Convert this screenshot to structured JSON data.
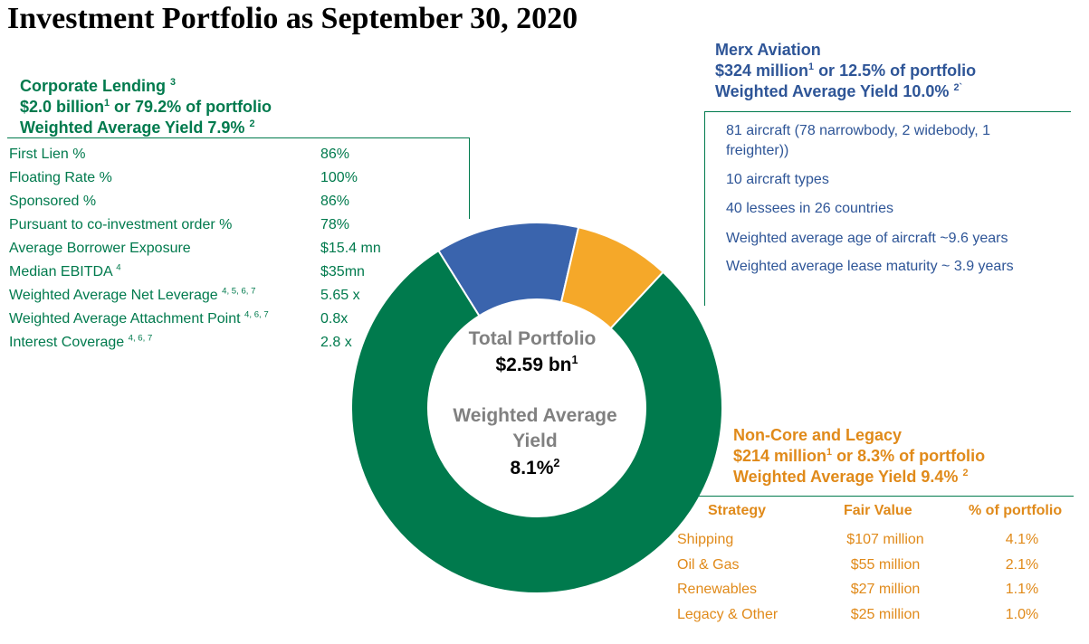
{
  "title": "Investment Portfolio as September 30, 2020",
  "center": {
    "label1": "Total Portfolio",
    "value1": "$2.59 bn",
    "sup1": "1",
    "label2a": "Weighted Average",
    "label2b": "Yield",
    "value2": "8.1%",
    "sup2": "2"
  },
  "corporate": {
    "h1": "Corporate Lending",
    "h1_sup": "3",
    "h2a": "$2.0 billion",
    "h2_sup": "1",
    "h2b": " or 79.2% of portfolio",
    "h3": "Weighted Average Yield 7.9% ",
    "h3_sup": "2",
    "rows": [
      {
        "label": "First Lien %",
        "sup": "",
        "value": "86%"
      },
      {
        "label": "Floating Rate %",
        "sup": "",
        "value": "100%"
      },
      {
        "label": "Sponsored %",
        "sup": "",
        "value": "86%"
      },
      {
        "label": "Pursuant to co-investment order %",
        "sup": "",
        "value": "78%"
      },
      {
        "label": "Average Borrower Exposure",
        "sup": "",
        "value": "$15.4 mn"
      },
      {
        "label": "Median EBITDA ",
        "sup": "4",
        "value": "$35mn"
      },
      {
        "label": "Weighted Average Net Leverage ",
        "sup": "4, 5, 6, 7",
        "value": "5.65 x"
      },
      {
        "label": "Weighted Average Attachment Point ",
        "sup": "4, 6, 7",
        "value": "0.8x"
      },
      {
        "label": "Interest Coverage ",
        "sup": "4, 6, 7",
        "value": "2.8 x"
      }
    ]
  },
  "merx": {
    "h1": "Merx Aviation",
    "h2a": "$324 million",
    "h2_sup": "1",
    "h2b": " or 12.5% of portfolio",
    "h3": "Weighted Average Yield 10.0% ",
    "h3_sup": "2`",
    "items": [
      "81 aircraft (78 narrowbody, 2 widebody, 1",
      "freighter))",
      "10 aircraft types",
      "40 lessees in 26 countries",
      "Weighted average age of aircraft  ~9.6 years",
      "Weighted average lease maturity ~ 3.9 years"
    ]
  },
  "noncore": {
    "h1": "Non-Core and Legacy",
    "h2a": "$214 million",
    "h2_sup": "1",
    "h2b": " or 8.3% of portfolio",
    "h3": "Weighted Average Yield 9.4% ",
    "h3_sup": "2",
    "columns": [
      "Strategy",
      "Fair Value",
      "% of portfolio"
    ],
    "rows": [
      [
        "Shipping",
        "$107 million",
        "4.1%"
      ],
      [
        "Oil & Gas",
        "$55 million",
        "2.1%"
      ],
      [
        "Renewables",
        "$27 million",
        "1.1%"
      ],
      [
        "Legacy & Other",
        "$25 million",
        "1.0%"
      ]
    ]
  },
  "colors": {
    "green": "#007a4d",
    "blue": "#3a64ad",
    "orange": "#f5a829",
    "center_gray": "#808080"
  },
  "chart_data": {
    "type": "pie",
    "donut": true,
    "categories": [
      "Corporate Lending",
      "Merx Aviation",
      "Non-Core and Legacy"
    ],
    "values": [
      79.2,
      12.5,
      8.3
    ],
    "unit": "% of portfolio",
    "colors": [
      "#007a4d",
      "#3a64ad",
      "#f5a829"
    ]
  }
}
